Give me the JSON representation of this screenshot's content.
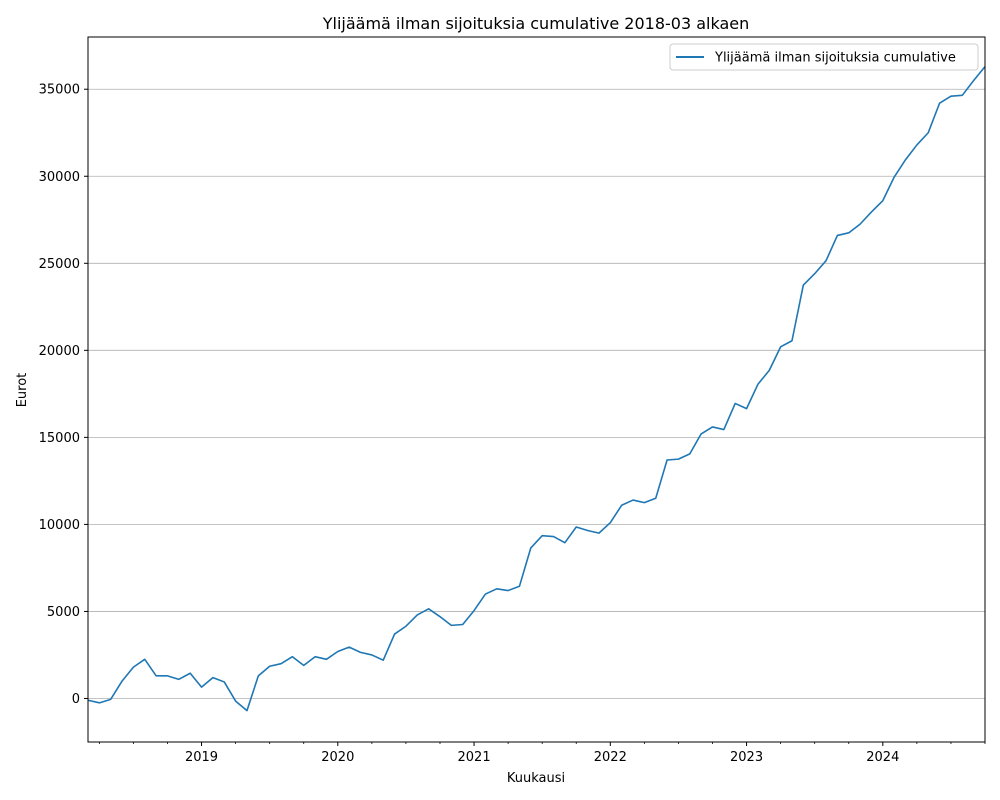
{
  "chart_data": {
    "type": "line",
    "title": "Ylijäämä ilman sijoituksia cumulative 2018-03 alkaen",
    "xlabel": "Kuukausi",
    "ylabel": "Eurot",
    "xlim": [
      "2018-03",
      "2024-10"
    ],
    "ylim": [
      -2500,
      38000
    ],
    "y_ticks": [
      0,
      5000,
      10000,
      15000,
      20000,
      25000,
      30000,
      35000
    ],
    "x_tick_labels": [
      {
        "date": "2019-01",
        "label": "2019"
      },
      {
        "date": "2020-01",
        "label": "2020"
      },
      {
        "date": "2021-01",
        "label": "2021"
      },
      {
        "date": "2022-01",
        "label": "2022"
      },
      {
        "date": "2023-01",
        "label": "2023"
      },
      {
        "date": "2024-01",
        "label": "2024"
      }
    ],
    "grid": "horizontal",
    "legend": "top-right",
    "series": [
      {
        "name": "Ylijäämä ilman sijoituksia cumulative",
        "color": "#1f77b4",
        "points": [
          [
            "2018-03",
            -100
          ],
          [
            "2018-04",
            -250
          ],
          [
            "2018-05",
            -50
          ],
          [
            "2018-06",
            1000
          ],
          [
            "2018-07",
            1800
          ],
          [
            "2018-08",
            2250
          ],
          [
            "2018-09",
            1300
          ],
          [
            "2018-10",
            1300
          ],
          [
            "2018-11",
            1100
          ],
          [
            "2018-12",
            1450
          ],
          [
            "2019-01",
            650
          ],
          [
            "2019-02",
            1200
          ],
          [
            "2019-03",
            950
          ],
          [
            "2019-04",
            -150
          ],
          [
            "2019-05",
            -700
          ],
          [
            "2019-06",
            1300
          ],
          [
            "2019-07",
            1850
          ],
          [
            "2019-08",
            2000
          ],
          [
            "2019-09",
            2400
          ],
          [
            "2019-10",
            1900
          ],
          [
            "2019-11",
            2400
          ],
          [
            "2019-12",
            2250
          ],
          [
            "2020-01",
            2700
          ],
          [
            "2020-02",
            2950
          ],
          [
            "2020-03",
            2650
          ],
          [
            "2020-04",
            2500
          ],
          [
            "2020-05",
            2200
          ],
          [
            "2020-06",
            3700
          ],
          [
            "2020-07",
            4150
          ],
          [
            "2020-08",
            4800
          ],
          [
            "2020-09",
            5150
          ],
          [
            "2020-10",
            4700
          ],
          [
            "2020-11",
            4200
          ],
          [
            "2020-12",
            4250
          ],
          [
            "2021-01",
            5050
          ],
          [
            "2021-02",
            6000
          ],
          [
            "2021-03",
            6300
          ],
          [
            "2021-04",
            6200
          ],
          [
            "2021-05",
            6450
          ],
          [
            "2021-06",
            8650
          ],
          [
            "2021-07",
            9350
          ],
          [
            "2021-08",
            9300
          ],
          [
            "2021-09",
            8950
          ],
          [
            "2021-10",
            9850
          ],
          [
            "2021-11",
            9650
          ],
          [
            "2021-12",
            9500
          ],
          [
            "2022-01",
            10100
          ],
          [
            "2022-02",
            11100
          ],
          [
            "2022-03",
            11400
          ],
          [
            "2022-04",
            11250
          ],
          [
            "2022-05",
            11500
          ],
          [
            "2022-06",
            13700
          ],
          [
            "2022-07",
            13750
          ],
          [
            "2022-08",
            14050
          ],
          [
            "2022-09",
            15200
          ],
          [
            "2022-10",
            15600
          ],
          [
            "2022-11",
            15450
          ],
          [
            "2022-12",
            16950
          ],
          [
            "2023-01",
            16650
          ],
          [
            "2023-02",
            18050
          ],
          [
            "2023-03",
            18850
          ],
          [
            "2023-04",
            20200
          ],
          [
            "2023-05",
            20550
          ],
          [
            "2023-06",
            23750
          ],
          [
            "2023-07",
            24400
          ],
          [
            "2023-08",
            25150
          ],
          [
            "2023-09",
            26600
          ],
          [
            "2023-10",
            26750
          ],
          [
            "2023-11",
            27250
          ],
          [
            "2023-12",
            27950
          ],
          [
            "2024-01",
            28600
          ],
          [
            "2024-02",
            29950
          ],
          [
            "2024-03",
            30950
          ],
          [
            "2024-04",
            31800
          ],
          [
            "2024-05",
            32500
          ],
          [
            "2024-06",
            34200
          ],
          [
            "2024-07",
            34600
          ],
          [
            "2024-08",
            34650
          ],
          [
            "2024-09",
            35500
          ],
          [
            "2024-10",
            36300
          ]
        ]
      }
    ]
  }
}
